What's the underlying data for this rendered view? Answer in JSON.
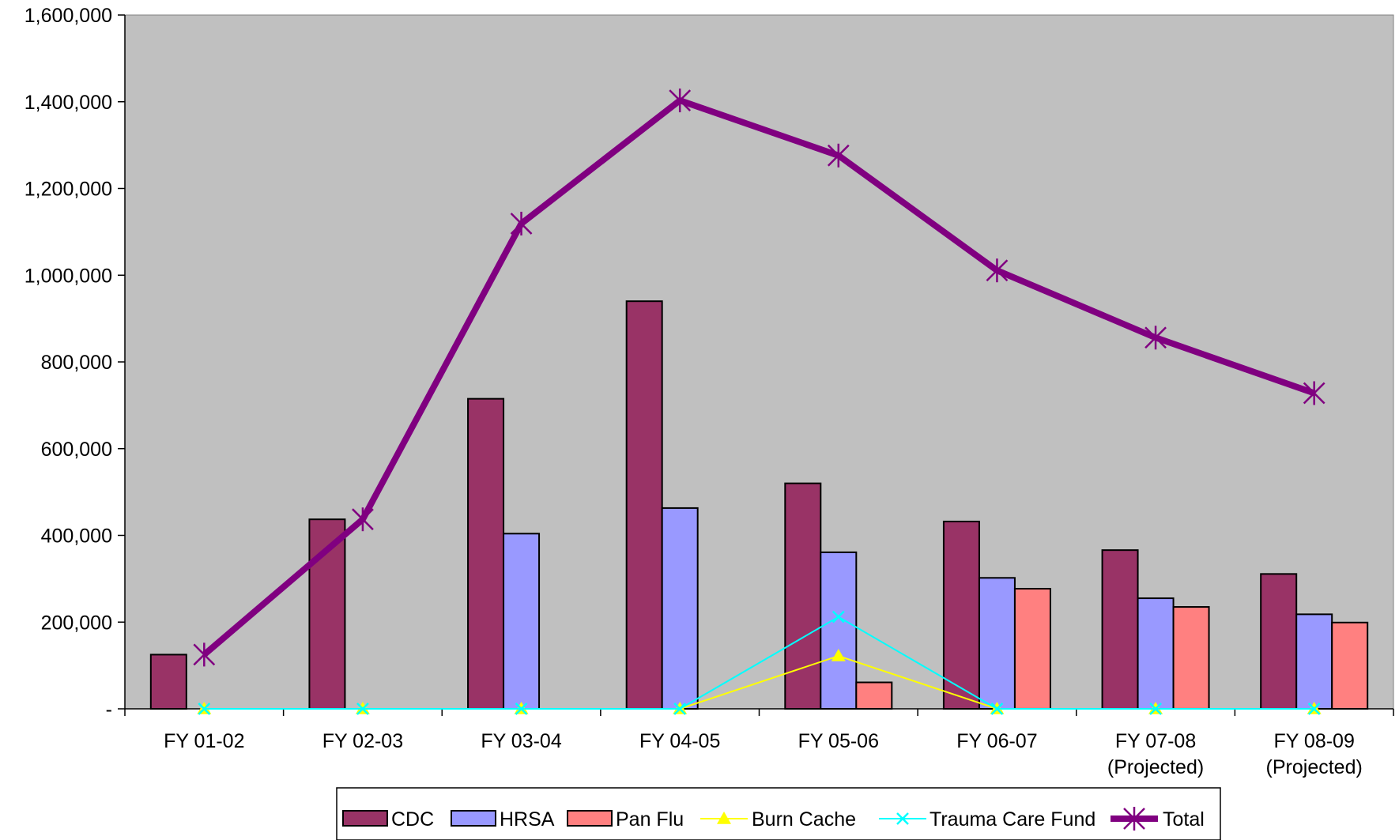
{
  "chart_data": {
    "type": "bar",
    "title": "",
    "xlabel": "",
    "ylabel": "",
    "ylim": [
      0,
      1600000
    ],
    "yticks": [
      0,
      200000,
      400000,
      600000,
      800000,
      1000000,
      1200000,
      1400000,
      1600000
    ],
    "ytick_labels": [
      "-",
      "200,000",
      "400,000",
      "600,000",
      "800,000",
      "1,000,000",
      "1,200,000",
      "1,400,000",
      "1,600,000"
    ],
    "categories": [
      [
        "FY 01-02"
      ],
      [
        "FY 02-03"
      ],
      [
        "FY 03-04"
      ],
      [
        "FY 04-05"
      ],
      [
        "FY 05-06"
      ],
      [
        "FY 06-07"
      ],
      [
        "FY 07-08",
        "(Projected)"
      ],
      [
        "FY 08-09",
        "(Projected)"
      ]
    ],
    "grid": false,
    "plot_background": "#c0c0c0",
    "legend_position": "bottom",
    "series": [
      {
        "name": "CDC",
        "kind": "bar",
        "color": "#993366",
        "values": [
          125000,
          437000,
          715000,
          940000,
          520000,
          432000,
          366000,
          311000
        ]
      },
      {
        "name": "HRSA",
        "kind": "bar",
        "color": "#9999ff",
        "values": [
          0,
          0,
          404000,
          463000,
          361000,
          302000,
          255000,
          218000
        ]
      },
      {
        "name": "Pan Flu",
        "kind": "bar",
        "color": "#ff8080",
        "values": [
          0,
          0,
          0,
          0,
          61000,
          277000,
          235000,
          199000
        ]
      },
      {
        "name": "Burn Cache",
        "kind": "line",
        "color": "#ffff00",
        "marker": "triangle",
        "values": [
          0,
          0,
          0,
          0,
          122000,
          0,
          0,
          0
        ]
      },
      {
        "name": "Trauma Care Fund",
        "kind": "line",
        "color": "#00ffff",
        "marker": "x",
        "values": [
          0,
          0,
          0,
          0,
          212000,
          0,
          0,
          0
        ]
      },
      {
        "name": "Total",
        "kind": "line",
        "color": "#800080",
        "marker": "star",
        "values": [
          125000,
          437000,
          1119000,
          1403000,
          1276000,
          1011000,
          856000,
          728000
        ]
      }
    ]
  }
}
